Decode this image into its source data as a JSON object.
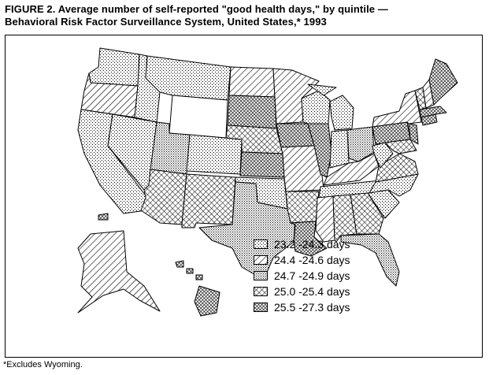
{
  "title": {
    "line1": "FIGURE 2. Average number of self-reported \"good health days,\" by quintile —",
    "line2": "Behavioral Risk Factor Surveillance System, United States,* 1993"
  },
  "legend": {
    "items": [
      {
        "label": "23.2 -24.3 days",
        "pattern": "light-dots"
      },
      {
        "label": "24.4 -24.6 days",
        "pattern": "diagonal-hatch"
      },
      {
        "label": "24.7 -24.9 days",
        "pattern": "medium-dots"
      },
      {
        "label": "25.0 -25.4 days",
        "pattern": "cross-hatch"
      },
      {
        "label": "25.5 -27.3 days",
        "pattern": "dense-cross"
      }
    ]
  },
  "footnote": "*Excludes Wyoming.",
  "colors": {
    "ink": "#000000",
    "background": "#ffffff"
  },
  "map_quintiles": {
    "excluded": [
      "Wyoming"
    ]
  }
}
